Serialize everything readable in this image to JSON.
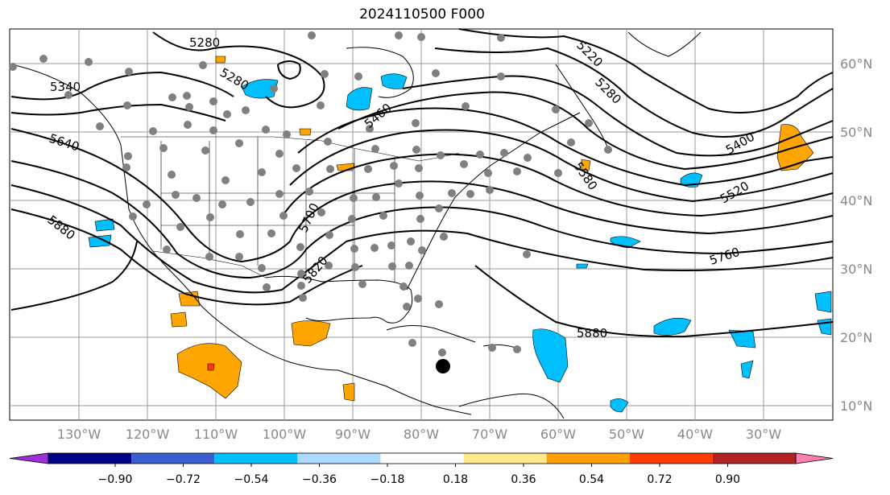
{
  "title": "2024110500 F000",
  "lat_labels": [
    "60°N",
    "50°N",
    "40°N",
    "30°N",
    "20°N",
    "10°N"
  ],
  "lon_labels": [
    "130°W",
    "120°W",
    "110°W",
    "100°W",
    "90°W",
    "80°W",
    "70°W",
    "60°W",
    "50°W",
    "40°W",
    "30°W"
  ],
  "contour_labels": [
    "5280",
    "5280",
    "5340",
    "5460",
    "5640",
    "5880",
    "5700",
    "5820",
    "5220",
    "5280",
    "5400",
    "5520",
    "5580",
    "5760",
    "5880"
  ],
  "colorbar": {
    "ticks": [
      "−0.90",
      "−0.72",
      "−0.54",
      "−0.36",
      "−0.18",
      "0.18",
      "0.36",
      "0.54",
      "0.72",
      "0.90"
    ],
    "colors": [
      "#9b30d9",
      "#00008b",
      "#3a5fcd",
      "#00bfff",
      "#add8ff",
      "#ffffff",
      "#ffe98a",
      "#ffa000",
      "#ff3c00",
      "#b22222",
      "#ff80b0"
    ]
  },
  "colors": {
    "contour": "#000000",
    "station_marker": "#808080",
    "grid": "#999999",
    "positive_fill": "#ffa500",
    "negative_fill": "#00bfff"
  }
}
